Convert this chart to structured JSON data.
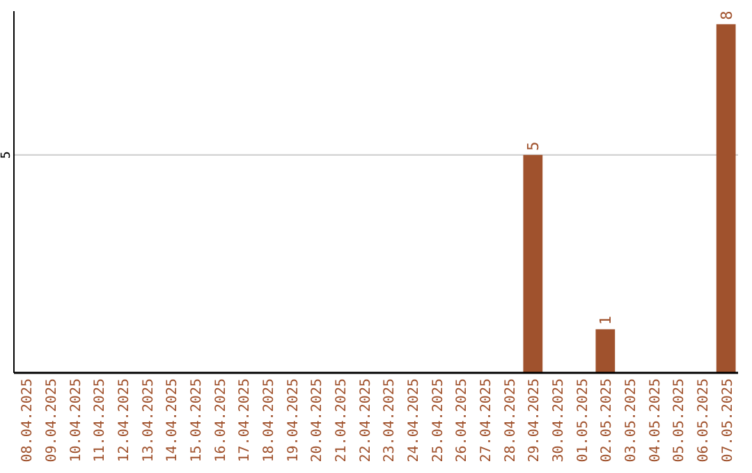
{
  "chart_data": {
    "type": "bar",
    "categories": [
      "08.04.2025",
      "09.04.2025",
      "10.04.2025",
      "11.04.2025",
      "12.04.2025",
      "13.04.2025",
      "14.04.2025",
      "15.04.2025",
      "16.04.2025",
      "17.04.2025",
      "18.04.2025",
      "19.04.2025",
      "20.04.2025",
      "21.04.2025",
      "22.04.2025",
      "23.04.2025",
      "24.04.2025",
      "25.04.2025",
      "26.04.2025",
      "27.04.2025",
      "28.04.2025",
      "29.04.2025",
      "30.04.2025",
      "01.05.2025",
      "02.05.2025",
      "03.05.2025",
      "04.05.2025",
      "05.05.2025",
      "06.05.2025",
      "07.05.2025"
    ],
    "values": [
      null,
      null,
      null,
      null,
      null,
      null,
      null,
      null,
      null,
      null,
      null,
      null,
      null,
      null,
      null,
      null,
      null,
      null,
      null,
      null,
      null,
      5,
      null,
      null,
      1,
      null,
      null,
      null,
      null,
      8
    ],
    "data_labels": true,
    "color": "#a0522d",
    "ylim": [
      0,
      8.3
    ],
    "yticks": [
      5
    ],
    "grid": "y"
  }
}
